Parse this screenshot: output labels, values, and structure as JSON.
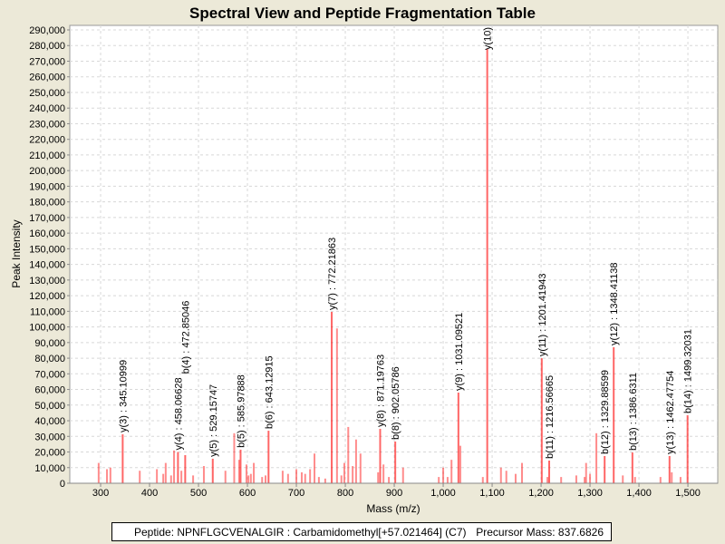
{
  "chart_data": {
    "type": "bar",
    "title": "Spectral View and Peptide Fragmentation Table",
    "xlabel": "Mass (m/z)",
    "ylabel": "Peak Intensity",
    "xlim": [
      237,
      1561
    ],
    "ylim": [
      0,
      292900
    ],
    "xticks": [
      300,
      400,
      500,
      600,
      700,
      800,
      900,
      1000,
      1100,
      1200,
      1300,
      1400,
      1500
    ],
    "xtick_labels": [
      "300",
      "400",
      "500",
      "600",
      "700",
      "800",
      "900",
      "1,000",
      "1,100",
      "1,200",
      "1,300",
      "1,400",
      "1,500"
    ],
    "yticks": [
      0,
      10000,
      20000,
      30000,
      40000,
      50000,
      60000,
      70000,
      80000,
      90000,
      100000,
      110000,
      120000,
      130000,
      140000,
      150000,
      160000,
      170000,
      180000,
      190000,
      200000,
      210000,
      220000,
      230000,
      240000,
      250000,
      260000,
      270000,
      280000,
      290000
    ],
    "ytick_labels": [
      "0",
      "10,000",
      "20,000",
      "30,000",
      "40,000",
      "50,000",
      "60,000",
      "70,000",
      "80,000",
      "90,000",
      "100,000",
      "110,000",
      "120,000",
      "130,000",
      "140,000",
      "150,000",
      "160,000",
      "170,000",
      "180,000",
      "190,000",
      "200,000",
      "210,000",
      "220,000",
      "230,000",
      "240,000",
      "250,000",
      "260,000",
      "270,000",
      "280,000",
      "290,000"
    ],
    "grid": true,
    "peak_color": "#ff0000",
    "peaks": [
      [
        296,
        13000
      ],
      [
        313,
        9000
      ],
      [
        320,
        10000
      ],
      [
        380,
        8000
      ],
      [
        415,
        9000
      ],
      [
        428,
        6000
      ],
      [
        433,
        13000
      ],
      [
        444,
        5000
      ],
      [
        450,
        21000
      ],
      [
        465,
        8000
      ],
      [
        489,
        5000
      ],
      [
        511,
        11000
      ],
      [
        555,
        8000
      ],
      [
        573,
        32000
      ],
      [
        583,
        15000
      ],
      [
        598,
        12000
      ],
      [
        602,
        5000
      ],
      [
        607,
        6000
      ],
      [
        613,
        13000
      ],
      [
        630,
        4000
      ],
      [
        637,
        5000
      ],
      [
        672,
        8000
      ],
      [
        683,
        6000
      ],
      [
        700,
        9000
      ],
      [
        711,
        7000
      ],
      [
        718,
        6000
      ],
      [
        728,
        9000
      ],
      [
        737,
        19000
      ],
      [
        746,
        4000
      ],
      [
        759,
        3000
      ],
      [
        783,
        99000
      ],
      [
        792,
        5000
      ],
      [
        798,
        13000
      ],
      [
        806,
        36000
      ],
      [
        815,
        11000
      ],
      [
        822,
        28000
      ],
      [
        831,
        19000
      ],
      [
        867,
        7000
      ],
      [
        878,
        12000
      ],
      [
        889,
        4000
      ],
      [
        918,
        10000
      ],
      [
        991,
        4000
      ],
      [
        1000,
        10000
      ],
      [
        1009,
        4000
      ],
      [
        1017,
        15000
      ],
      [
        1035,
        24000
      ],
      [
        1081,
        4000
      ],
      [
        1118,
        10000
      ],
      [
        1129,
        8000
      ],
      [
        1148,
        6000
      ],
      [
        1161,
        13000
      ],
      [
        1213,
        4000
      ],
      [
        1241,
        4000
      ],
      [
        1272,
        5000
      ],
      [
        1289,
        4000
      ],
      [
        1292,
        13000
      ],
      [
        1300,
        6000
      ],
      [
        1313,
        32000
      ],
      [
        1367,
        5000
      ],
      [
        1392,
        4000
      ],
      [
        1444,
        4000
      ],
      [
        1467,
        7000
      ],
      [
        1485,
        4000
      ]
    ],
    "annotations": [
      {
        "label": "y(3) : 345.10999",
        "mass": 345.10999,
        "intensity": 31300
      },
      {
        "label": "y(4) : 458.06628",
        "mass": 458.06628,
        "intensity": 20000
      },
      {
        "label": "b(4) : 472.85046",
        "mass": 472.85046,
        "intensity": 18000
      },
      {
        "label": "y(5) : 529.15747",
        "mass": 529.15747,
        "intensity": 15700
      },
      {
        "label": "b(5) : 585.97888",
        "mass": 585.97888,
        "intensity": 21500
      },
      {
        "label": "b(6) : 643.12915",
        "mass": 643.12915,
        "intensity": 33600
      },
      {
        "label": "y(7) : 772.21863",
        "mass": 772.21863,
        "intensity": 109600
      },
      {
        "label": "y(8) : 871.19763",
        "mass": 871.19763,
        "intensity": 34800
      },
      {
        "label": "b(8) : 902.05786",
        "mass": 902.05786,
        "intensity": 26700
      },
      {
        "label": "y(9) : 1031.09521",
        "mass": 1031.09521,
        "intensity": 58000
      },
      {
        "label": "y(10)",
        "mass": 1090,
        "intensity": 278000
      },
      {
        "label": "y(11) : 1201.41943",
        "mass": 1201.41943,
        "intensity": 80000
      },
      {
        "label": "b(11) : 1216.56665",
        "mass": 1216.56665,
        "intensity": 14500
      },
      {
        "label": "b(12) : 1329.88599",
        "mass": 1329.88599,
        "intensity": 17400
      },
      {
        "label": "y(12) : 1348.41138",
        "mass": 1348.41138,
        "intensity": 87000
      },
      {
        "label": "b(13) : 1386.6311",
        "mass": 1386.6311,
        "intensity": 19700
      },
      {
        "label": "y(13) : 1462.47754",
        "mass": 1462.47754,
        "intensity": 17400
      },
      {
        "label": "b(14) : 1499.32031",
        "mass": 1499.32031,
        "intensity": 43500
      }
    ]
  },
  "footer": {
    "peptide": "Peptide: NPNFLGCVENALGIR : Carbamidomethyl[+57.021464] (C7)",
    "precursor": "Precursor Mass: 837.6826"
  }
}
